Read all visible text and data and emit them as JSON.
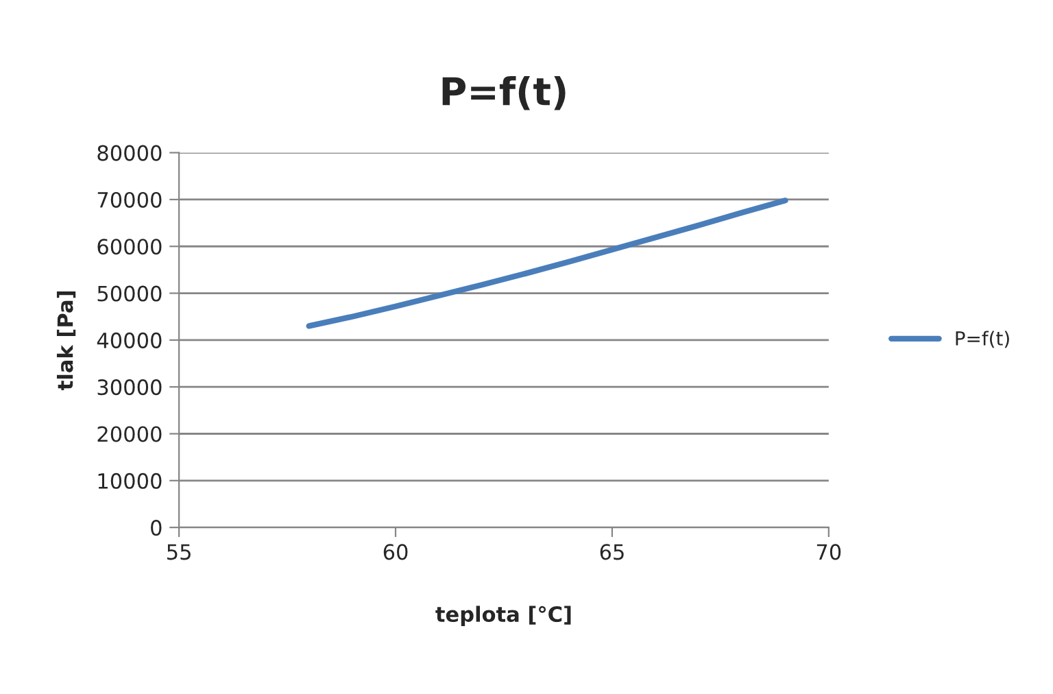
{
  "chart_data": {
    "type": "line",
    "title": "P=f(t)",
    "xlabel": "teplota [°C]",
    "ylabel": "tlak [Pa]",
    "x": [
      58,
      59,
      60,
      61,
      62,
      63,
      64,
      65,
      66,
      67,
      68,
      69
    ],
    "series": [
      {
        "name": "P=f(t)",
        "color": "#4a7ebb",
        "values": [
          43000,
          45000,
          47200,
          49500,
          51800,
          54200,
          56700,
          59300,
          61900,
          64500,
          67200,
          69800
        ]
      }
    ],
    "xlim": [
      55,
      70
    ],
    "xticks": [
      55,
      60,
      65,
      70
    ],
    "ylim": [
      0,
      80000
    ],
    "yticks": [
      0,
      10000,
      20000,
      30000,
      40000,
      50000,
      60000,
      70000,
      80000
    ],
    "grid": "y",
    "legend": "right",
    "marker": "none",
    "line_style": "solid"
  }
}
